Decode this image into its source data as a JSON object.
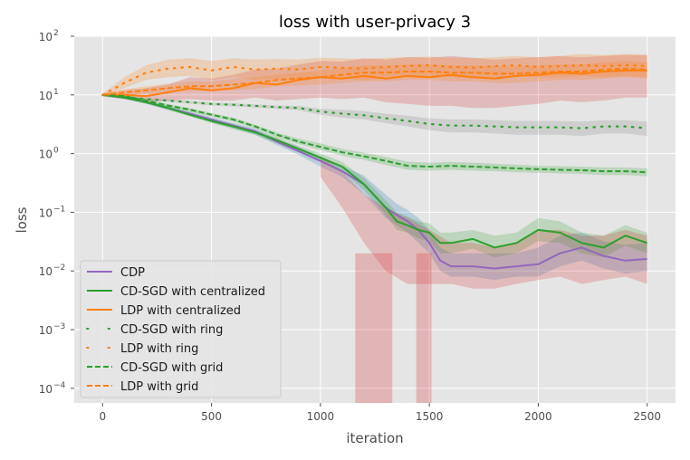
{
  "chart_data": {
    "type": "line",
    "title": "loss with user-privacy  3",
    "xlabel": "iteration",
    "ylabel": "loss",
    "xlim": [
      -130,
      2630
    ],
    "ylim_log10": [
      -4.25,
      2
    ],
    "y_scale": "log",
    "x_ticks": [
      0,
      500,
      1000,
      1500,
      2000,
      2500
    ],
    "x_tick_labels": [
      "0",
      "500",
      "1000",
      "1500",
      "2000",
      "2500"
    ],
    "y_ticks_exp": [
      -4,
      -3,
      -2,
      -1,
      0,
      1,
      2
    ],
    "y_tick_base": "10",
    "y_tick_exps": [
      "−4",
      "−3",
      "−2",
      "−1",
      "0",
      "1",
      "2"
    ],
    "grid": true,
    "legend_position": "lower-left",
    "series": [
      {
        "name": "CDP",
        "color": "#9467bd",
        "style": "solid",
        "band_color": "#1f77b4",
        "x": [
          0,
          100,
          200,
          300,
          400,
          500,
          600,
          700,
          800,
          900,
          1000,
          1100,
          1200,
          1300,
          1350,
          1400,
          1450,
          1500,
          1550,
          1600,
          1700,
          1800,
          1900,
          2000,
          2100,
          2200,
          2300,
          2400,
          2500
        ],
        "y": [
          10,
          9,
          7.5,
          6,
          4.8,
          3.8,
          3.0,
          2.4,
          1.6,
          1.1,
          0.75,
          0.5,
          0.3,
          0.12,
          0.09,
          0.07,
          0.05,
          0.03,
          0.015,
          0.012,
          0.012,
          0.011,
          0.012,
          0.013,
          0.02,
          0.025,
          0.018,
          0.015,
          0.016
        ],
        "band_lo": [
          9.5,
          8.5,
          7,
          5.5,
          4.4,
          3.4,
          2.7,
          2.1,
          1.4,
          0.95,
          0.6,
          0.4,
          0.2,
          0.08,
          0.06,
          0.045,
          0.03,
          0.02,
          0.01,
          0.008,
          0.008,
          0.007,
          0.008,
          0.008,
          0.012,
          0.015,
          0.011,
          0.009,
          0.01
        ],
        "band_hi": [
          10.5,
          9.5,
          8,
          6.5,
          5.2,
          4.2,
          3.3,
          2.7,
          1.8,
          1.3,
          0.9,
          0.62,
          0.42,
          0.2,
          0.14,
          0.11,
          0.08,
          0.05,
          0.025,
          0.02,
          0.02,
          0.02,
          0.02,
          0.025,
          0.04,
          0.045,
          0.032,
          0.028,
          0.03
        ]
      },
      {
        "name": "CD-SGD with centralized",
        "color": "#2ca02c",
        "style": "solid",
        "band_color": "#2ca02c",
        "x": [
          0,
          100,
          200,
          300,
          400,
          500,
          600,
          700,
          800,
          900,
          1000,
          1100,
          1200,
          1300,
          1350,
          1400,
          1450,
          1500,
          1550,
          1600,
          1700,
          1800,
          1900,
          2000,
          2100,
          2200,
          2300,
          2400,
          2500
        ],
        "y": [
          10,
          9,
          7.5,
          6,
          4.6,
          3.6,
          2.9,
          2.3,
          1.7,
          1.2,
          0.85,
          0.6,
          0.3,
          0.12,
          0.07,
          0.06,
          0.05,
          0.045,
          0.03,
          0.03,
          0.035,
          0.025,
          0.03,
          0.05,
          0.045,
          0.03,
          0.025,
          0.04,
          0.03
        ],
        "band_lo": [
          9.6,
          8.6,
          7.1,
          5.6,
          4.3,
          3.3,
          2.6,
          2.1,
          1.5,
          1.05,
          0.72,
          0.5,
          0.24,
          0.09,
          0.05,
          0.045,
          0.036,
          0.032,
          0.02,
          0.02,
          0.024,
          0.017,
          0.02,
          0.032,
          0.03,
          0.02,
          0.017,
          0.027,
          0.02
        ],
        "band_hi": [
          10.4,
          9.4,
          7.9,
          6.4,
          4.9,
          3.9,
          3.2,
          2.5,
          1.9,
          1.35,
          1.0,
          0.72,
          0.38,
          0.16,
          0.1,
          0.085,
          0.07,
          0.065,
          0.045,
          0.045,
          0.05,
          0.04,
          0.045,
          0.08,
          0.07,
          0.045,
          0.04,
          0.06,
          0.045
        ]
      },
      {
        "name": "LDP with centralized",
        "color": "#ff7f0e",
        "style": "solid",
        "band_color": "#d62728",
        "x": [
          0,
          100,
          200,
          300,
          400,
          500,
          600,
          700,
          800,
          900,
          1000,
          1100,
          1200,
          1300,
          1400,
          1500,
          1600,
          1700,
          1800,
          1900,
          2000,
          2100,
          2200,
          2300,
          2400,
          2500
        ],
        "y": [
          10,
          10,
          9.5,
          11,
          13,
          12,
          13,
          16,
          15,
          18,
          20,
          19,
          21,
          19,
          21,
          20,
          22,
          20,
          19,
          21,
          22,
          24,
          23,
          25,
          26,
          26
        ],
        "band_lo": [
          9.4,
          8.5,
          7.5,
          8,
          8.5,
          8,
          8,
          9,
          8,
          8.5,
          9,
          8.5,
          9,
          7.5,
          7,
          6.5,
          6.5,
          6,
          6,
          6.5,
          7,
          8,
          7.5,
          8,
          9,
          9
        ],
        "band_hi": [
          10.6,
          12,
          13,
          15,
          20,
          19,
          22,
          27,
          28,
          33,
          38,
          37,
          42,
          40,
          44,
          43,
          46,
          43,
          40,
          42,
          44,
          46,
          44,
          46,
          48,
          48
        ]
      },
      {
        "name": "CD-SGD with ring",
        "color": "#2ca02c",
        "style": "dotted",
        "band_color": "#7f7f7f",
        "x": [
          0,
          100,
          200,
          300,
          400,
          500,
          600,
          700,
          800,
          900,
          1000,
          1100,
          1200,
          1300,
          1400,
          1500,
          1600,
          1700,
          1800,
          1900,
          2000,
          2100,
          2200,
          2300,
          2400,
          2500
        ],
        "y": [
          10,
          9.2,
          8.5,
          8,
          7.5,
          7,
          6.8,
          6.5,
          6.2,
          6,
          5.2,
          4.8,
          4.5,
          4,
          3.6,
          3.2,
          3.0,
          3.0,
          2.9,
          2.8,
          2.8,
          2.8,
          2.7,
          2.9,
          2.9,
          2.7
        ],
        "band_lo": [
          9.6,
          8.8,
          8.1,
          7.6,
          7.1,
          6.6,
          6.4,
          6.1,
          5.8,
          5.5,
          4.6,
          4.1,
          3.8,
          3.3,
          2.9,
          2.5,
          2.3,
          2.3,
          2.2,
          2.1,
          2.1,
          2.1,
          2.0,
          2.2,
          2.2,
          2.0
        ],
        "band_hi": [
          10.4,
          9.6,
          8.9,
          8.4,
          7.9,
          7.4,
          7.2,
          6.9,
          6.6,
          6.5,
          5.8,
          5.6,
          5.3,
          4.8,
          4.4,
          4.0,
          3.8,
          3.8,
          3.7,
          3.6,
          3.6,
          3.6,
          3.5,
          3.7,
          3.7,
          3.5
        ]
      },
      {
        "name": "LDP with ring",
        "color": "#ff7f0e",
        "style": "dotted",
        "band_color": "#ff7f0e",
        "x": [
          0,
          100,
          200,
          300,
          400,
          500,
          600,
          700,
          800,
          900,
          1000,
          1100,
          1200,
          1300,
          1400,
          1500,
          1600,
          1700,
          1800,
          1900,
          2000,
          2100,
          2200,
          2300,
          2400,
          2500
        ],
        "y": [
          10,
          16,
          24,
          28,
          30,
          26,
          30,
          27,
          28,
          27,
          30,
          29,
          28,
          30,
          31,
          32,
          30,
          29,
          31,
          32,
          30,
          31,
          32,
          31,
          32,
          31
        ],
        "band_lo": [
          9.5,
          13,
          18,
          20,
          21,
          18,
          20,
          18,
          19,
          18,
          20,
          19,
          18,
          20,
          21,
          21,
          20,
          19,
          20,
          21,
          20,
          20,
          21,
          20,
          21,
          20
        ],
        "band_hi": [
          10.5,
          20,
          32,
          40,
          42,
          38,
          42,
          40,
          41,
          40,
          43,
          42,
          41,
          43,
          44,
          45,
          43,
          42,
          44,
          46,
          44,
          46,
          50,
          48,
          50,
          48
        ]
      },
      {
        "name": "CD-SGD with grid",
        "color": "#2ca02c",
        "style": "dashed",
        "band_color": "#2ca02c",
        "x": [
          0,
          100,
          200,
          300,
          400,
          500,
          600,
          700,
          800,
          900,
          1000,
          1100,
          1200,
          1300,
          1400,
          1500,
          1600,
          1700,
          1800,
          1900,
          2000,
          2100,
          2200,
          2300,
          2400,
          2500
        ],
        "y": [
          10,
          9.5,
          8,
          6.6,
          5.6,
          4.6,
          3.8,
          2.9,
          2.1,
          1.6,
          1.3,
          1.05,
          0.9,
          0.75,
          0.62,
          0.6,
          0.62,
          0.6,
          0.58,
          0.56,
          0.54,
          0.53,
          0.52,
          0.5,
          0.5,
          0.48
        ],
        "band_lo": [
          9.6,
          9.1,
          7.6,
          6.2,
          5.2,
          4.3,
          3.5,
          2.7,
          1.9,
          1.45,
          1.15,
          0.92,
          0.78,
          0.64,
          0.53,
          0.51,
          0.53,
          0.51,
          0.5,
          0.48,
          0.47,
          0.46,
          0.45,
          0.43,
          0.43,
          0.41
        ],
        "band_hi": [
          10.4,
          9.9,
          8.4,
          7.0,
          6.0,
          4.9,
          4.1,
          3.1,
          2.3,
          1.8,
          1.5,
          1.2,
          1.04,
          0.88,
          0.73,
          0.7,
          0.72,
          0.7,
          0.67,
          0.65,
          0.62,
          0.61,
          0.6,
          0.58,
          0.58,
          0.56
        ]
      },
      {
        "name": "LDP with grid",
        "color": "#ff7f0e",
        "style": "dashed",
        "band_color": "#ff7f0e",
        "x": [
          0,
          100,
          200,
          300,
          400,
          500,
          600,
          700,
          800,
          900,
          1000,
          1100,
          1200,
          1300,
          1400,
          1500,
          1600,
          1700,
          1800,
          1900,
          2000,
          2100,
          2200,
          2300,
          2400,
          2500
        ],
        "y": [
          10,
          11,
          12,
          13,
          14,
          14,
          15,
          16,
          18,
          19,
          20,
          22,
          24,
          24,
          25,
          25,
          24,
          24,
          23,
          23,
          24,
          25,
          25,
          27,
          28,
          27
        ],
        "band_lo": [
          9.5,
          9.8,
          10.5,
          11,
          11.5,
          11.5,
          12,
          12.5,
          14,
          14.5,
          15,
          16,
          17,
          17,
          18,
          18,
          17,
          17,
          16,
          16,
          17,
          18,
          18,
          19,
          20,
          19
        ],
        "band_hi": [
          10.5,
          12.5,
          14,
          15.5,
          17,
          17,
          18.5,
          20,
          22,
          24,
          26,
          29,
          32,
          32,
          33,
          33,
          32,
          32,
          31,
          31,
          32,
          33,
          33,
          36,
          38,
          36
        ]
      }
    ],
    "ldp_centralized_dropouts": [
      [
        1160,
        1330
      ],
      [
        1440,
        1510
      ]
    ]
  }
}
